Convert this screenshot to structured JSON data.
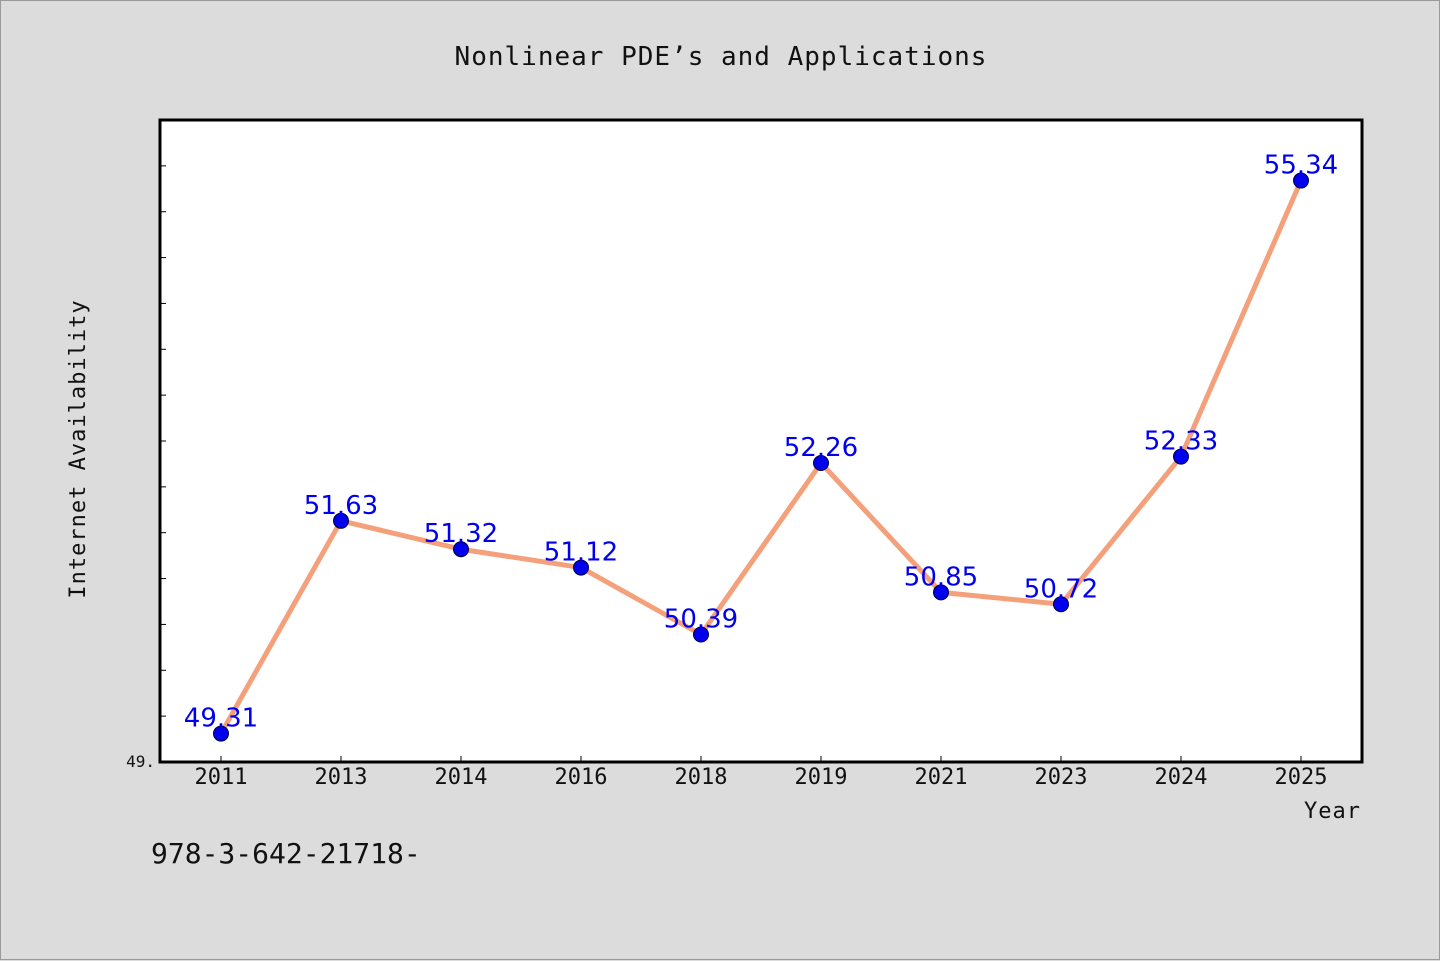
{
  "chart_data": {
    "type": "line",
    "title": "Nonlinear PDE’s and Applications",
    "xlabel": "Year",
    "ylabel": "Internet Availability",
    "categories": [
      "2011",
      "2013",
      "2014",
      "2016",
      "2018",
      "2019",
      "2021",
      "2023",
      "2024",
      "2025"
    ],
    "series": [
      {
        "values": [
          49.31,
          51.63,
          51.32,
          51.12,
          50.39,
          52.26,
          50.85,
          50.72,
          52.33,
          55.34
        ],
        "data_labels": [
          "49.31",
          "51.63",
          "51.32",
          "51.12",
          "50.39",
          "52.26",
          "50.85",
          "50.72",
          "52.33",
          "55.34"
        ]
      }
    ],
    "ylim": [
      49.0,
      56.0
    ],
    "y_min_label": "49.",
    "line_color": "#f4a07a",
    "marker_color": "#0000ee",
    "label_color": "#0000ee",
    "grid": false
  },
  "footer": {
    "text": "978-3-642-21718-"
  }
}
